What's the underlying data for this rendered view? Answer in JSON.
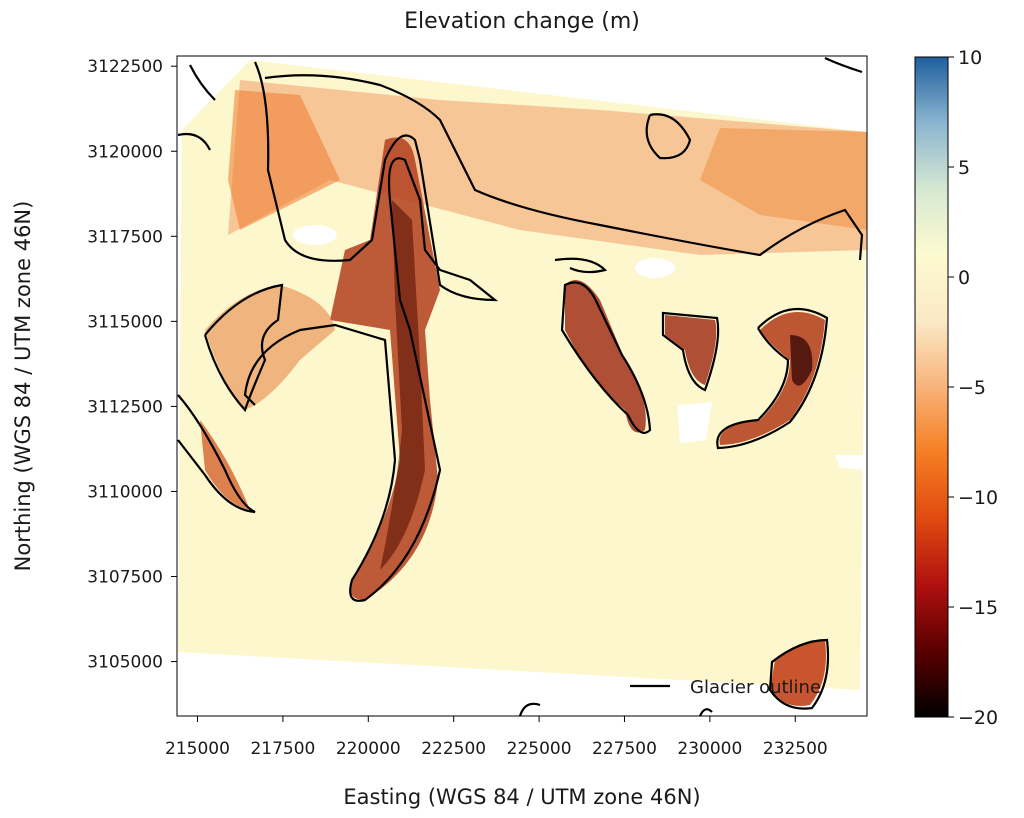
{
  "chart_data": {
    "type": "heatmap",
    "title": "Elevation change (m)",
    "xlabel": "Easting (WGS 84 / UTM zone 46N)",
    "ylabel": "Northing (WGS 84 / UTM zone 46N)",
    "xlim": [
      214400,
      234600
    ],
    "ylim": [
      3103400,
      3122800
    ],
    "x_ticks": [
      215000,
      217500,
      220000,
      222500,
      225000,
      227500,
      230000,
      232500
    ],
    "y_ticks": [
      3105000,
      3107500,
      3110000,
      3112500,
      3115000,
      3117500,
      3120000,
      3122500
    ],
    "colorbar": {
      "range": [
        -20,
        10
      ],
      "ticks": [
        10,
        5,
        0,
        -5,
        -10,
        -15,
        -20
      ],
      "colormap": [
        "#000000",
        "#5a0000",
        "#b01010",
        "#e04a10",
        "#f57e22",
        "#f8b37a",
        "#fbe9c6",
        "#fdfbd0",
        "#d6e8d2",
        "#8ab5cf",
        "#1f5f9e"
      ]
    },
    "legend": {
      "entries": [
        {
          "label": "Glacier outline",
          "color": "#000000"
        }
      ],
      "placement": "bottom-right"
    },
    "grid": false
  }
}
